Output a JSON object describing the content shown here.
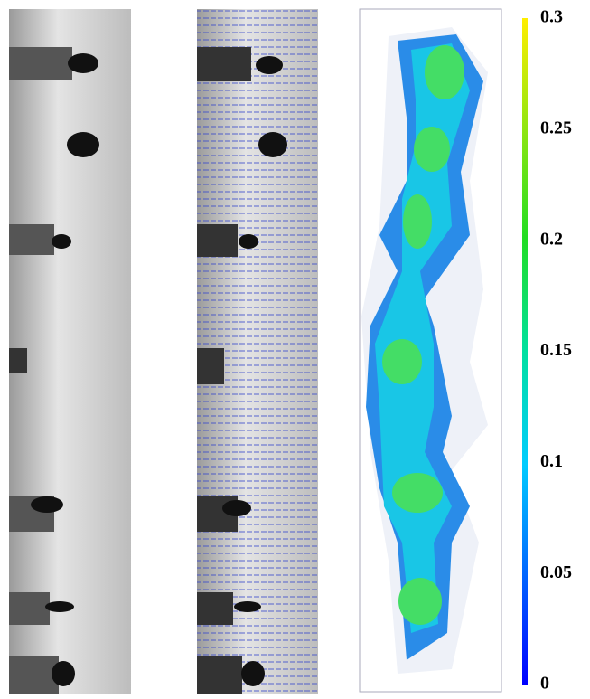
{
  "colorbar": {
    "lim": [
      0,
      0.3
    ],
    "ticks": [
      0,
      0.05,
      0.1,
      0.15,
      0.2,
      0.25,
      0.3
    ]
  }
}
